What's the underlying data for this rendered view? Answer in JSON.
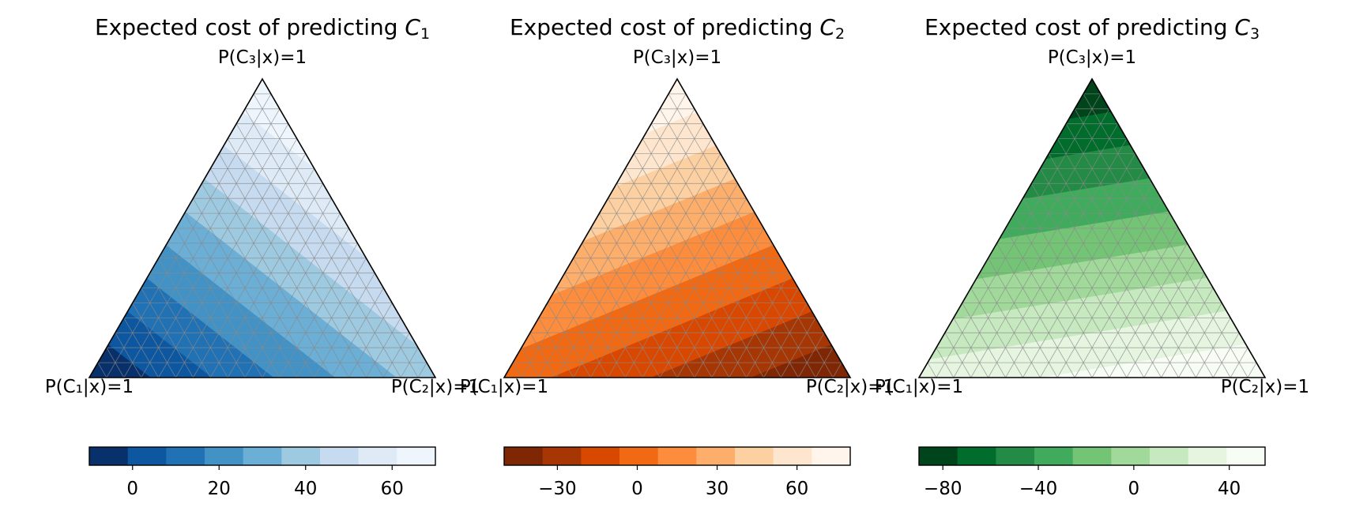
{
  "chart_data": [
    {
      "type": "heatmap",
      "subtype": "ternary-filled-contour",
      "title": "Expected cost of predicting C₁",
      "title_text": "Expected cost of predicting ",
      "title_var": "C",
      "title_sub": "1",
      "vertex_labels": {
        "bottom_left": "P(C₁|x)=1",
        "bottom_right": "P(C₂|x)=1",
        "top": "P(C₃|x)=1"
      },
      "corner_values": {
        "C1": -10,
        "C2": 40,
        "C3": 70
      },
      "colorbar": {
        "range": [
          -10,
          70
        ],
        "levels": 9,
        "ticks": [
          0,
          20,
          40,
          60
        ],
        "tick_labels": [
          "0",
          "20",
          "40",
          "60"
        ]
      },
      "colormap": [
        "#08306b",
        "#0d57a1",
        "#2171b5",
        "#4292c6",
        "#6baed6",
        "#9ecae1",
        "#c6dbef",
        "#deebf7",
        "#eef5fc"
      ],
      "grid": true,
      "grid_divisions": 20
    },
    {
      "type": "heatmap",
      "subtype": "ternary-filled-contour",
      "title": "Expected cost of predicting C₂",
      "title_text": "Expected cost of predicting ",
      "title_var": "C",
      "title_sub": "2",
      "vertex_labels": {
        "bottom_left": "P(C₁|x)=1",
        "bottom_right": "P(C₂|x)=1",
        "top": "P(C₃|x)=1"
      },
      "corner_values": {
        "C1": 0,
        "C2": -50,
        "C3": 80
      },
      "colorbar": {
        "range": [
          -50,
          80
        ],
        "levels": 9,
        "ticks": [
          -30,
          0,
          30,
          60
        ],
        "tick_labels": [
          "−30",
          "0",
          "30",
          "60"
        ]
      },
      "colormap": [
        "#7f2704",
        "#a63603",
        "#d94801",
        "#f16913",
        "#fd8d3c",
        "#fdae6b",
        "#fdd0a2",
        "#fee6ce",
        "#fff5eb"
      ],
      "grid": true,
      "grid_divisions": 20
    },
    {
      "type": "heatmap",
      "subtype": "ternary-filled-contour",
      "title": "Expected cost of predicting C₃",
      "title_text": "Expected cost of predicting ",
      "title_var": "C",
      "title_sub": "3",
      "vertex_labels": {
        "bottom_left": "P(C₁|x)=1",
        "bottom_right": "P(C₂|x)=1",
        "top": "P(C₃|x)=1"
      },
      "corner_values": {
        "C1": 30,
        "C2": 55,
        "C3": -90
      },
      "colorbar": {
        "range": [
          -90,
          55
        ],
        "levels": 9,
        "ticks": [
          -80,
          -40,
          0,
          40
        ],
        "tick_labels": [
          "−80",
          "−40",
          "0",
          "40"
        ]
      },
      "colormap": [
        "#00441b",
        "#006d2c",
        "#238b45",
        "#41ab5d",
        "#74c476",
        "#a1d99b",
        "#c7e9c0",
        "#e5f5e0",
        "#f7fcf5"
      ],
      "grid": true,
      "grid_divisions": 20
    }
  ]
}
